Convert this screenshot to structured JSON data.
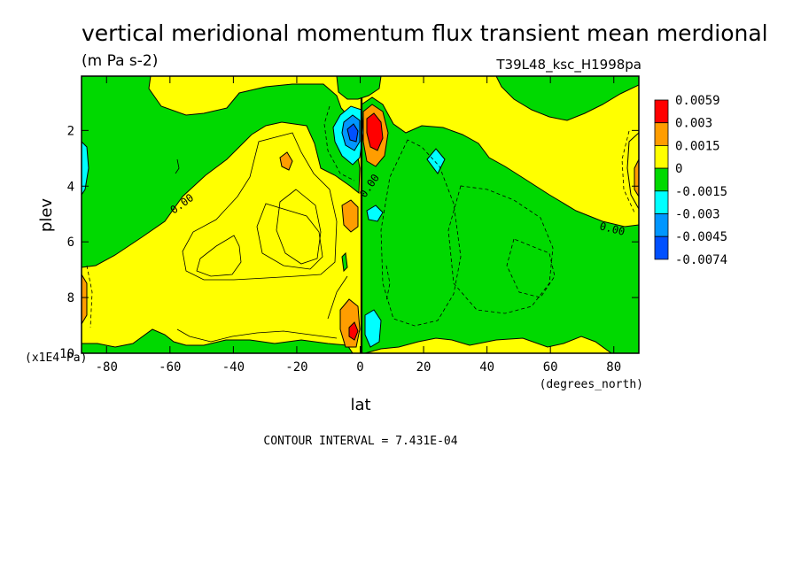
{
  "chart_data": {
    "type": "heatmap",
    "title": "vertical meridional momentum flux transient mean merdional",
    "subtitle": "(m Pa s-2)",
    "dataset": "T39L48_ksc_H1998pa",
    "xlabel": "lat",
    "x_units": "(degrees_north)",
    "ylabel": "plev",
    "y_units": "(x1E4 Pa)",
    "xlim": [
      -87.9,
      87.9
    ],
    "ylim": [
      10,
      0.05
    ],
    "x_ticks": [
      -80,
      -60,
      -40,
      -20,
      0,
      20,
      40,
      60,
      80
    ],
    "y_ticks": [
      2,
      4,
      6,
      8,
      10
    ],
    "x_tick_labels": [
      "-80",
      "-60",
      "-40",
      "-20",
      "0",
      "20",
      "40",
      "60",
      "80"
    ],
    "y_tick_labels": [
      "2",
      "4",
      "6",
      "8",
      "10"
    ],
    "contour_interval_label": "CONTOUR INTERVAL = 7.431E-04",
    "contour_labels": [
      "0.00",
      "0.00",
      "0.00"
    ],
    "levels": [
      -0.0074,
      -0.0045,
      -0.003,
      -0.0015,
      0,
      0.0015,
      0.003,
      0.0059
    ],
    "legend": {
      "placement": "right",
      "labels": [
        "0.0059",
        "0.003",
        "0.0015",
        "0",
        "-0.0015",
        "-0.003",
        "-0.0045",
        "-0.0074"
      ],
      "colors": [
        "#ff0000",
        "#ff9d00",
        "#ffff00",
        "#00d900",
        "#00ffff",
        "#0096ff",
        "#0050ff"
      ]
    },
    "colors": {
      "positive_bg": "#ffff00",
      "negative_bg": "#00d900"
    },
    "regions": [
      {
        "name": "sh-polar-top-negative",
        "sign": "negative",
        "level": "-0.0015..0",
        "lon_range": [
          -87.9,
          -5
        ],
        "plev_range": [
          0.05,
          4.8
        ]
      },
      {
        "name": "sh-midlat-positive",
        "sign": "positive",
        "level": "0..0.0015",
        "lon_range": [
          -87.9,
          0
        ],
        "plev_range": [
          2.5,
          9.5
        ]
      },
      {
        "name": "sh-surface-negative",
        "sign": "negative",
        "level": "-0.0015..0",
        "lon_range": [
          -87.9,
          -5
        ],
        "plev_range": [
          9.3,
          10
        ]
      },
      {
        "name": "eq-upper-negative-core",
        "sign": "negative",
        "level": "-0.0074..-0.0015",
        "lon": -3,
        "plev": 2.2
      },
      {
        "name": "eq-upper-positive-core",
        "sign": "positive",
        "level": "0.003..0.0059",
        "lon": 4,
        "plev": 2.1
      },
      {
        "name": "nh-negative-body",
        "sign": "negative",
        "level": "-0.0015..0",
        "lon_range": [
          1,
          87.9
        ],
        "plev_range": [
          1.5,
          10
        ]
      },
      {
        "name": "nh-upper-positive",
        "sign": "positive",
        "level": "0..0.0015",
        "lon_range": [
          5,
          87.9
        ],
        "plev_range": [
          0.05,
          6
        ]
      }
    ]
  }
}
